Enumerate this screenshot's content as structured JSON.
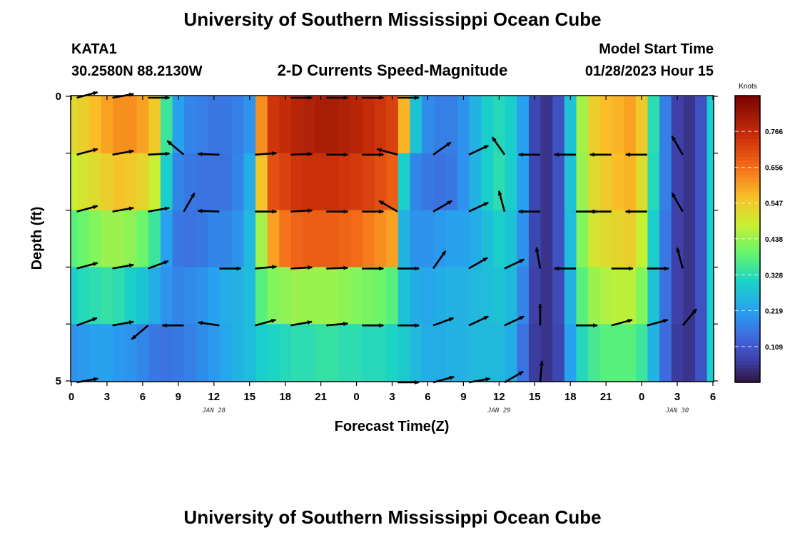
{
  "header": {
    "title": "University of Southern Mississippi Ocean Cube",
    "station": "KATA1",
    "coords": "30.2580N  88.2130W",
    "subtitle": "2-D Currents Speed-Magnitude",
    "model_start_label": "Model Start Time",
    "model_start_value": "01/28/2023 Hour 15"
  },
  "footer": {
    "title": "University of Southern Mississippi Ocean Cube"
  },
  "chart_data": {
    "type": "heatmap",
    "title": "2-D Currents Speed-Magnitude",
    "xlabel": "Forecast Time(Z)",
    "ylabel": "Depth (ft)",
    "x_unit": "hours since 01/28/2023 00Z",
    "xlim": [
      0,
      54
    ],
    "ylim": [
      0,
      5
    ],
    "y_inverted": true,
    "x_ticks": [
      0,
      3,
      6,
      9,
      12,
      15,
      18,
      21,
      24,
      27,
      30,
      33,
      36,
      39,
      42,
      45,
      48,
      51,
      54
    ],
    "x_tick_labels": [
      "0",
      "3",
      "6",
      "9",
      "12",
      "15",
      "18",
      "21",
      "0",
      "3",
      "6",
      "9",
      "12",
      "15",
      "18",
      "21",
      "0",
      "3",
      "6"
    ],
    "y_ticks": [
      0,
      1,
      2,
      3,
      4,
      5
    ],
    "y_tick_labels": [
      "0",
      "",
      "",
      "",
      "",
      "5"
    ],
    "date_labels": [
      {
        "x": 12,
        "label": "JAN 28"
      },
      {
        "x": 36,
        "label": "JAN 29"
      },
      {
        "x": 51,
        "label": "JAN 30"
      }
    ],
    "colorbar": {
      "label": "Knots",
      "min": 0.0,
      "max": 0.875,
      "ticks": [
        0.109,
        0.219,
        0.328,
        0.438,
        0.547,
        0.656,
        0.766
      ],
      "tick_labels": [
        "0.109",
        "0.219",
        "0.328",
        "0.438",
        "0.547",
        "0.656",
        "0.766"
      ]
    },
    "time_hours": [
      0,
      1,
      2,
      3,
      4,
      5,
      6,
      7,
      8,
      9,
      10,
      11,
      12,
      13,
      14,
      15,
      16,
      17,
      18,
      19,
      20,
      21,
      22,
      23,
      24,
      25,
      26,
      27,
      28,
      29,
      30,
      31,
      32,
      33,
      34,
      35,
      36,
      37,
      38,
      39,
      40,
      41,
      42,
      43,
      44,
      45,
      46,
      47,
      48,
      49,
      50,
      51,
      52,
      53,
      54
    ],
    "depth_rows_ft": [
      0,
      0.5,
      1.5,
      2.5,
      3.5,
      4.5
    ],
    "speed_knots": [
      [
        0.58,
        0.6,
        0.65,
        0.7,
        0.72,
        0.74,
        0.7,
        0.62,
        0.35,
        0.22,
        0.17,
        0.15,
        0.12,
        0.1,
        0.14,
        0.25,
        0.62,
        0.78,
        0.82,
        0.84,
        0.85,
        0.85,
        0.84,
        0.82,
        0.8,
        0.78,
        0.75,
        0.72,
        0.6,
        0.3,
        0.2,
        0.18,
        0.17,
        0.2,
        0.25,
        0.3,
        0.33,
        0.3,
        0.2,
        0.07,
        0.05,
        0.1,
        0.28,
        0.45,
        0.55,
        0.58,
        0.6,
        0.62,
        0.55,
        0.35,
        0.18,
        0.07,
        0.05,
        0.1,
        0.3
      ],
      [
        0.52,
        0.54,
        0.57,
        0.6,
        0.62,
        0.62,
        0.6,
        0.55,
        0.35,
        0.22,
        0.18,
        0.17,
        0.16,
        0.16,
        0.17,
        0.2,
        0.62,
        0.74,
        0.76,
        0.78,
        0.79,
        0.8,
        0.8,
        0.79,
        0.78,
        0.76,
        0.74,
        0.72,
        0.58,
        0.28,
        0.19,
        0.17,
        0.17,
        0.2,
        0.25,
        0.3,
        0.32,
        0.3,
        0.22,
        0.08,
        0.05,
        0.1,
        0.28,
        0.45,
        0.54,
        0.57,
        0.58,
        0.6,
        0.55,
        0.33,
        0.17,
        0.07,
        0.05,
        0.1,
        0.3
      ],
      [
        0.48,
        0.5,
        0.52,
        0.54,
        0.56,
        0.55,
        0.53,
        0.48,
        0.3,
        0.18,
        0.16,
        0.15,
        0.15,
        0.15,
        0.18,
        0.24,
        0.56,
        0.7,
        0.72,
        0.74,
        0.75,
        0.75,
        0.75,
        0.74,
        0.73,
        0.72,
        0.7,
        0.68,
        0.3,
        0.18,
        0.16,
        0.15,
        0.16,
        0.2,
        0.25,
        0.3,
        0.33,
        0.3,
        0.22,
        0.08,
        0.05,
        0.1,
        0.28,
        0.44,
        0.52,
        0.55,
        0.57,
        0.58,
        0.52,
        0.32,
        0.17,
        0.07,
        0.05,
        0.1,
        0.3
      ],
      [
        0.38,
        0.4,
        0.42,
        0.44,
        0.44,
        0.43,
        0.4,
        0.35,
        0.22,
        0.16,
        0.15,
        0.16,
        0.18,
        0.18,
        0.2,
        0.26,
        0.45,
        0.6,
        0.65,
        0.67,
        0.68,
        0.68,
        0.68,
        0.67,
        0.66,
        0.64,
        0.62,
        0.6,
        0.25,
        0.2,
        0.2,
        0.21,
        0.22,
        0.22,
        0.24,
        0.27,
        0.3,
        0.28,
        0.2,
        0.08,
        0.05,
        0.1,
        0.27,
        0.42,
        0.5,
        0.52,
        0.53,
        0.54,
        0.48,
        0.3,
        0.16,
        0.07,
        0.05,
        0.1,
        0.3
      ],
      [
        0.3,
        0.32,
        0.33,
        0.34,
        0.33,
        0.3,
        0.28,
        0.24,
        0.2,
        0.18,
        0.19,
        0.2,
        0.22,
        0.24,
        0.25,
        0.27,
        0.38,
        0.42,
        0.43,
        0.44,
        0.44,
        0.44,
        0.44,
        0.43,
        0.42,
        0.41,
        0.4,
        0.38,
        0.28,
        0.24,
        0.23,
        0.24,
        0.25,
        0.25,
        0.26,
        0.27,
        0.28,
        0.26,
        0.18,
        0.07,
        0.05,
        0.09,
        0.25,
        0.38,
        0.44,
        0.46,
        0.47,
        0.47,
        0.42,
        0.28,
        0.15,
        0.07,
        0.05,
        0.1,
        0.3
      ],
      [
        0.2,
        0.21,
        0.22,
        0.22,
        0.21,
        0.2,
        0.18,
        0.16,
        0.15,
        0.16,
        0.17,
        0.19,
        0.21,
        0.23,
        0.25,
        0.27,
        0.3,
        0.31,
        0.32,
        0.33,
        0.33,
        0.34,
        0.34,
        0.33,
        0.33,
        0.32,
        0.32,
        0.31,
        0.29,
        0.26,
        0.24,
        0.24,
        0.25,
        0.25,
        0.26,
        0.26,
        0.26,
        0.24,
        0.15,
        0.06,
        0.05,
        0.08,
        0.22,
        0.32,
        0.36,
        0.38,
        0.38,
        0.38,
        0.35,
        0.25,
        0.14,
        0.06,
        0.05,
        0.1,
        0.3
      ]
    ],
    "vector_times": [
      1,
      4,
      7,
      10,
      13,
      16,
      19,
      22,
      25,
      28,
      31,
      34,
      37,
      40,
      43,
      46,
      49,
      52
    ],
    "vector_depths_ft": [
      0,
      1,
      2,
      3,
      4,
      5
    ],
    "vector_angles_deg": [
      [
        15,
        10,
        0,
        null,
        null,
        null,
        0,
        0,
        0,
        0,
        null,
        null,
        null,
        null,
        null,
        null,
        null,
        null
      ],
      [
        15,
        10,
        3,
        140,
        178,
        4,
        2,
        0,
        0,
        165,
        35,
        25,
        125,
        180,
        180,
        180,
        180,
        120
      ],
      [
        15,
        10,
        10,
        60,
        178,
        0,
        3,
        0,
        0,
        150,
        30,
        25,
        105,
        180,
        0,
        180,
        180,
        120
      ],
      [
        15,
        10,
        20,
        null,
        0,
        5,
        3,
        2,
        0,
        0,
        55,
        30,
        25,
        100,
        180,
        0,
        0,
        105
      ],
      [
        20,
        10,
        220,
        180,
        172,
        15,
        10,
        5,
        0,
        0,
        20,
        25,
        25,
        90,
        0,
        15,
        15,
        50
      ],
      [
        10,
        null,
        null,
        null,
        null,
        null,
        null,
        null,
        null,
        0,
        15,
        10,
        30,
        85,
        null,
        null,
        null,
        null
      ]
    ]
  }
}
